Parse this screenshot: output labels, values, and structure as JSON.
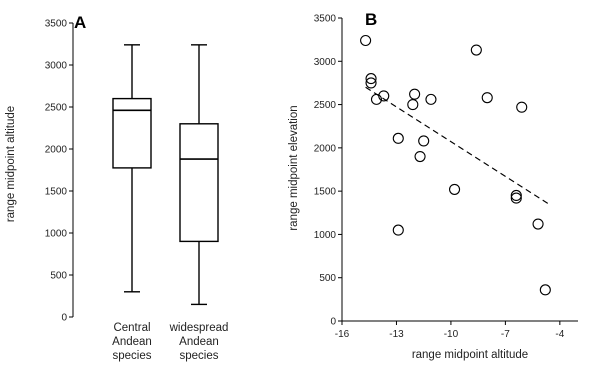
{
  "chart_data": [
    {
      "type": "box",
      "panel": "A",
      "ylabel": "range midpoint altitude",
      "ylim": [
        0,
        3500
      ],
      "yticks": [
        0,
        500,
        1000,
        1500,
        2000,
        2500,
        3000,
        3500
      ],
      "categories": [
        [
          "Central",
          "Andean",
          "species"
        ],
        [
          "widespread",
          "Andean",
          "species"
        ]
      ],
      "boxes": [
        {
          "whisker_low": 300,
          "q1": 1775,
          "median": 2460,
          "q3": 2600,
          "whisker_high": 3240
        },
        {
          "whisker_low": 150,
          "q1": 900,
          "median": 1880,
          "q3": 2300,
          "whisker_high": 3240
        }
      ],
      "grid": false
    },
    {
      "type": "scatter",
      "panel": "B",
      "xlabel": "range midpoint altitude",
      "ylabel": "range midpoint elevation",
      "xlim": [
        -16,
        -3
      ],
      "ylim": [
        0,
        3500
      ],
      "xticks": [
        -16,
        -13,
        -10,
        -7,
        -4
      ],
      "yticks": [
        0,
        500,
        1000,
        1500,
        2000,
        2500,
        3000,
        3500
      ],
      "points": [
        {
          "x": -14.7,
          "y": 3240
        },
        {
          "x": -14.4,
          "y": 2800
        },
        {
          "x": -14.4,
          "y": 2750
        },
        {
          "x": -14.1,
          "y": 2560
        },
        {
          "x": -13.7,
          "y": 2600
        },
        {
          "x": -12.9,
          "y": 2110
        },
        {
          "x": -12.9,
          "y": 1050
        },
        {
          "x": -12.1,
          "y": 2500
        },
        {
          "x": -12.0,
          "y": 2620
        },
        {
          "x": -11.7,
          "y": 1900
        },
        {
          "x": -11.5,
          "y": 2080
        },
        {
          "x": -11.1,
          "y": 2560
        },
        {
          "x": -9.8,
          "y": 1520
        },
        {
          "x": -8.6,
          "y": 3130
        },
        {
          "x": -8.0,
          "y": 2580
        },
        {
          "x": -6.4,
          "y": 1450
        },
        {
          "x": -6.4,
          "y": 1420
        },
        {
          "x": -6.1,
          "y": 2470
        },
        {
          "x": -5.2,
          "y": 1120
        },
        {
          "x": -4.8,
          "y": 360
        }
      ],
      "trendline": {
        "style": "dashed",
        "x": [
          -14.7,
          -4.6
        ],
        "y": [
          2700,
          1350
        ]
      },
      "grid": false
    }
  ]
}
